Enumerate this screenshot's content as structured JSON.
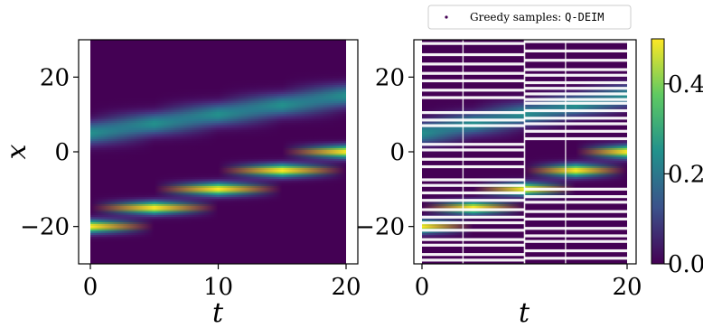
{
  "chart_data": [
    {
      "type": "heatmap",
      "title": "",
      "xlabel": "t",
      "ylabel": "x",
      "xlim": [
        0,
        20
      ],
      "ylim": [
        -30,
        30
      ],
      "xticks": [
        0,
        10,
        20
      ],
      "yticks": [
        -20,
        0,
        20
      ],
      "xtick_labels": [
        "0",
        "10",
        "20"
      ],
      "ytick_labels": [
        "−20",
        "0",
        "20"
      ],
      "colormap": "viridis",
      "features": [
        {
          "center_x_at_t0": -20,
          "center_x_at_t20": 0,
          "peak_value": 0.5,
          "width": 1.2
        },
        {
          "center_x_at_t0": 5,
          "center_x_at_t20": 15,
          "peak_value": 0.25,
          "width": 2.0
        }
      ]
    },
    {
      "type": "heatmap",
      "title": "",
      "xlabel": "t",
      "ylabel": "",
      "xlim": [
        0,
        20
      ],
      "ylim": [
        -30,
        30
      ],
      "xticks": [
        0,
        20
      ],
      "yticks": [
        -20,
        0,
        20
      ],
      "xtick_labels": [
        "0",
        "20"
      ],
      "ytick_labels": [
        "−20",
        "0",
        "20"
      ],
      "colormap": "viridis",
      "overlay": "greedy sample points (white)",
      "legend": {
        "placement": "top",
        "prefix": "Greedy samples: ",
        "method": "Q-DEIM"
      },
      "colorbar": {
        "range": [
          0.0,
          0.5
        ],
        "ticks": [
          0.0,
          0.2,
          0.4
        ],
        "tick_labels": [
          "0.0",
          "0.2",
          "0.4"
        ]
      },
      "sample_time_block_boundaries": [
        0,
        4,
        10,
        14,
        20
      ],
      "sampled_x_rows_early": [
        -29,
        -27.5,
        -25,
        -23.5,
        -21,
        -19,
        -17.5,
        -15.5,
        -13,
        -11,
        -9,
        -7.5,
        -4,
        -2,
        0.5,
        2,
        7,
        8.5,
        10.5,
        14.5,
        16.5,
        19,
        21,
        23.5,
        26,
        29
      ],
      "sampled_x_rows_late": [
        -28.5,
        -26.5,
        -24,
        -22.5,
        -20.5,
        -18,
        -16,
        -13.5,
        -12,
        -10,
        3.5,
        5.5,
        7.5,
        9,
        11,
        13,
        14,
        15.5,
        17,
        18.5,
        20.5,
        22,
        24.5,
        27,
        29.5
      ]
    }
  ]
}
